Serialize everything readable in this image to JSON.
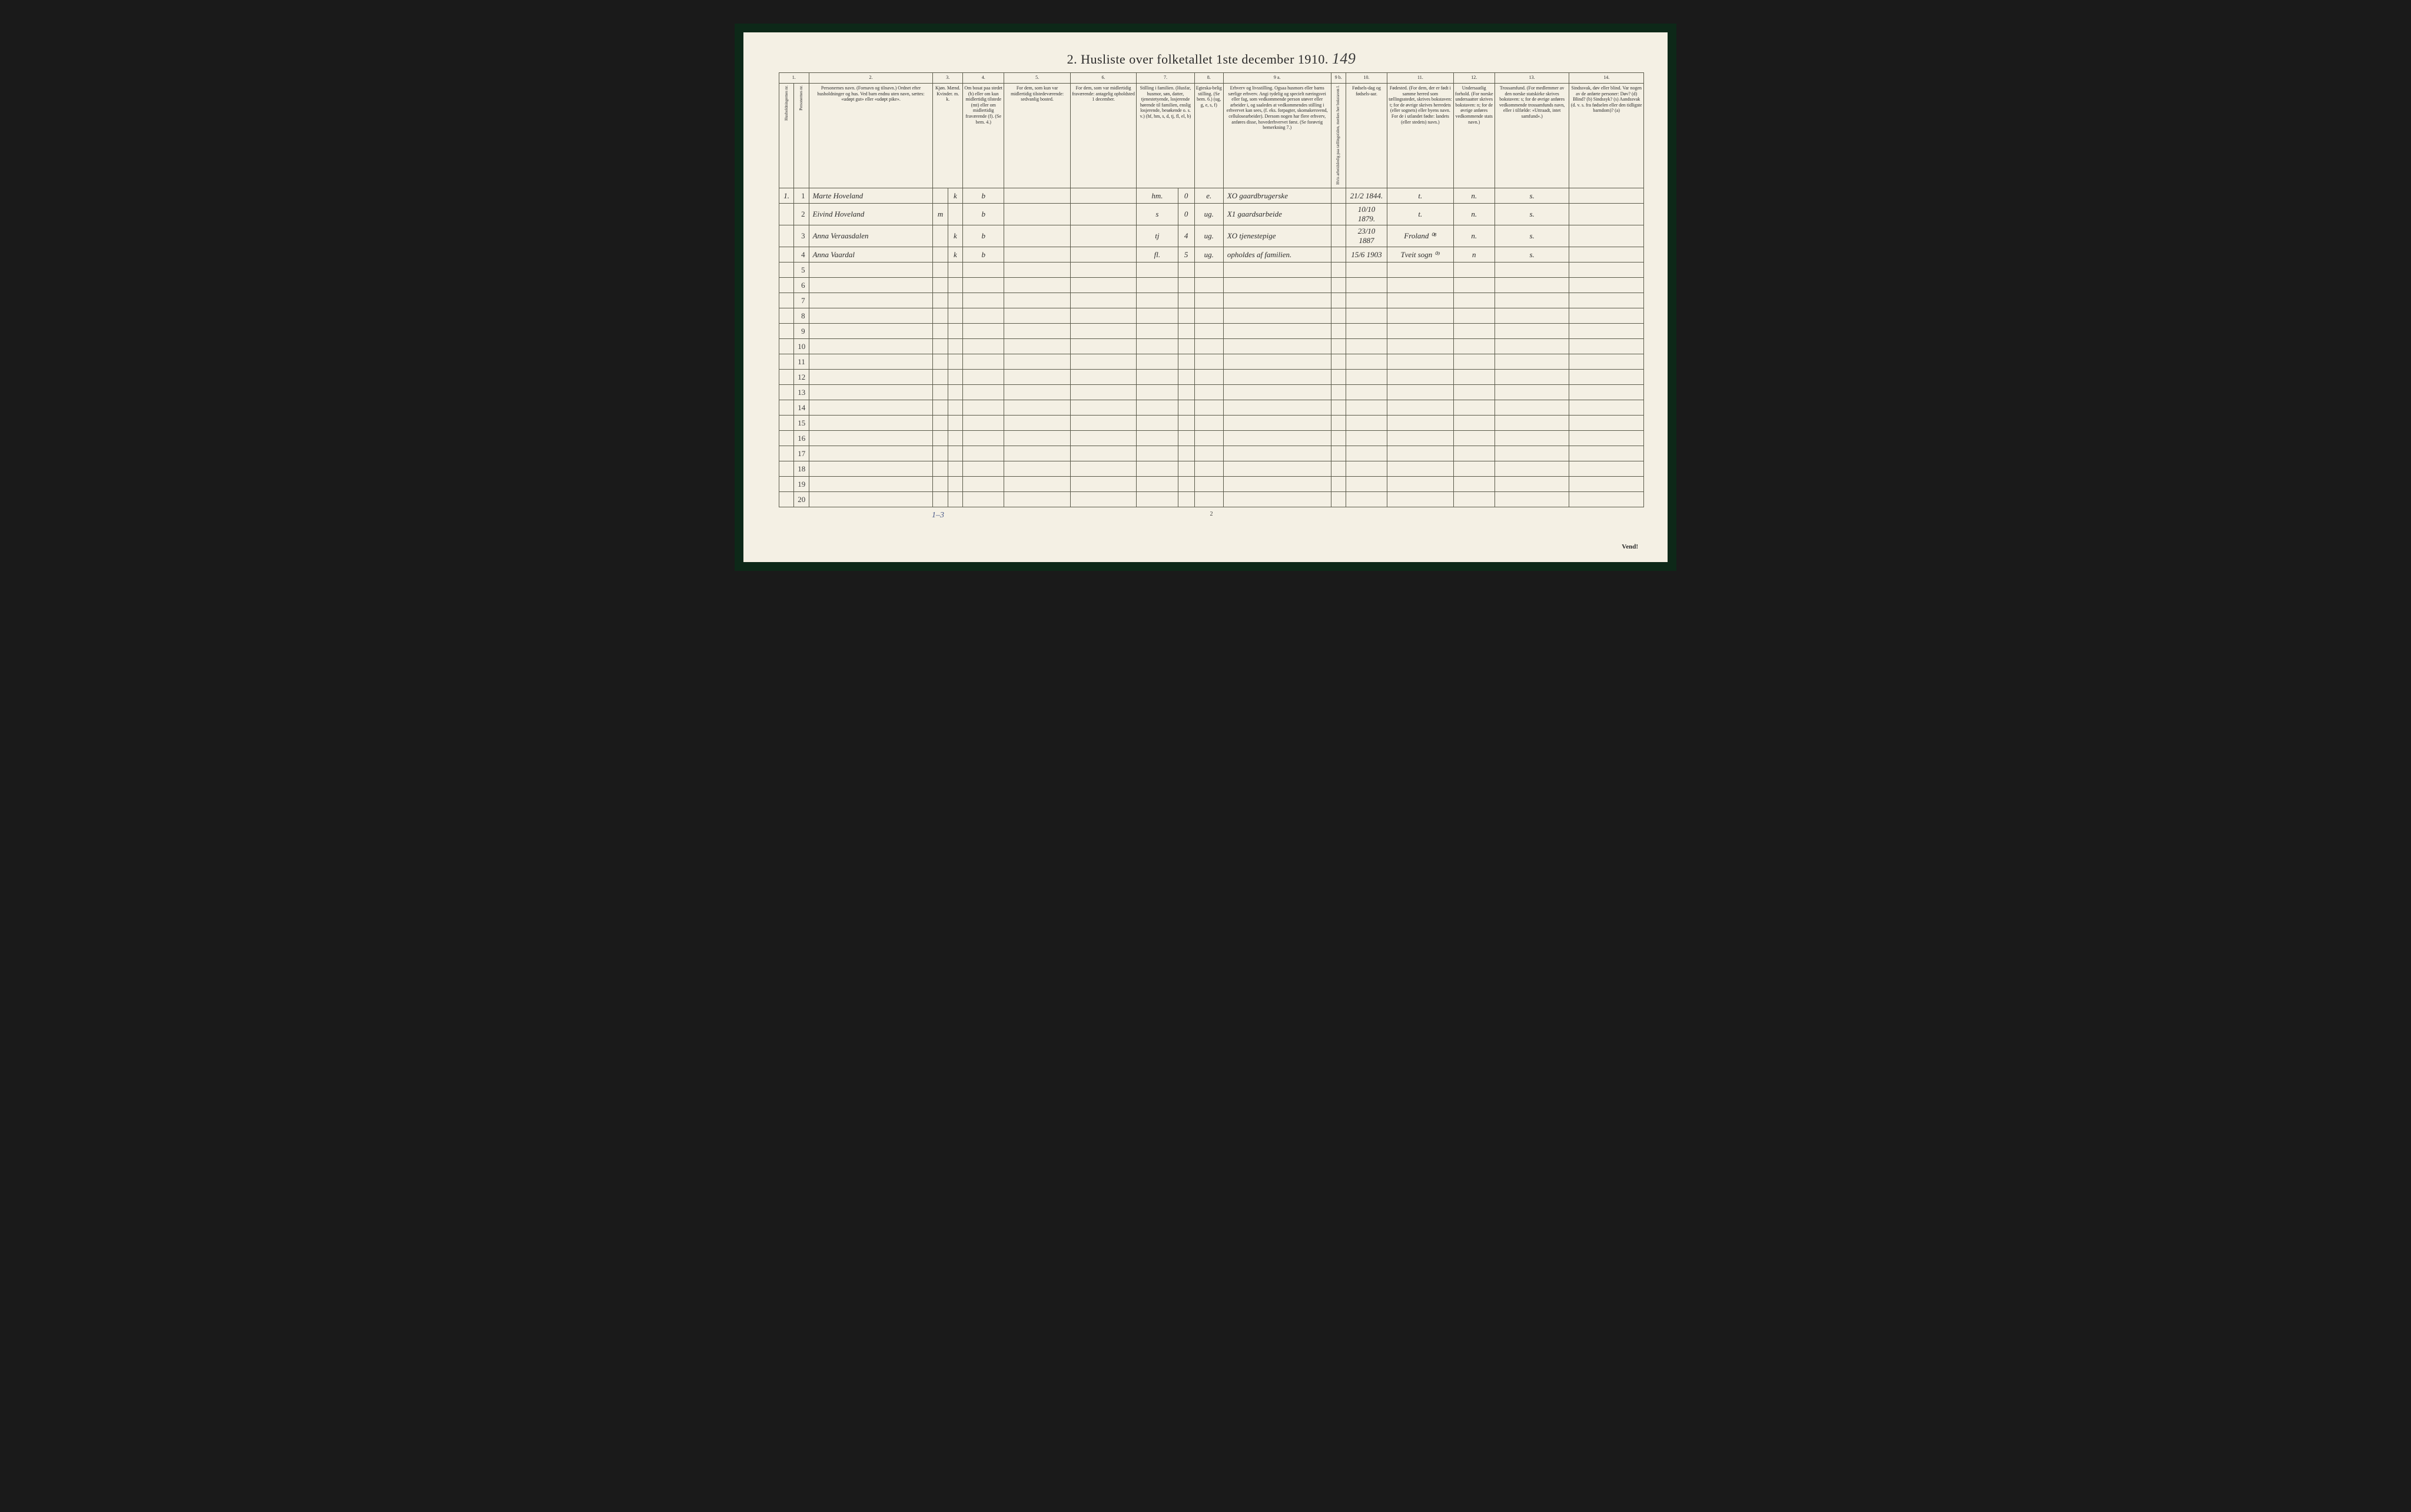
{
  "document": {
    "title_prefix": "2.",
    "title": "Husliste over folketallet 1ste december 1910.",
    "handwritten_page_number": "149",
    "footer_page_num": "2",
    "footer_handwritten": "1–3",
    "vend": "Vend!"
  },
  "table": {
    "column_numbers": [
      "1.",
      "2.",
      "3.",
      "4.",
      "5.",
      "6.",
      "7.",
      "8.",
      "9 a.",
      "9 b.",
      "10.",
      "11.",
      "12.",
      "13.",
      "14."
    ],
    "column_widths_pct": [
      2,
      2,
      16,
      2.2,
      2.2,
      5,
      8,
      8,
      9,
      5,
      13,
      2,
      5,
      8,
      6,
      10,
      10
    ],
    "headers": {
      "col1a": "Husholdningernes nr.",
      "col1b": "Personernes nr.",
      "col2": "Personernes navn.\n(Fornavn og tilnavn.)\nOrdnet efter husholdninger og hus.\nVed barn endnu uten navn, sættes: «udøpt gut» eller «udøpt pike».",
      "col3": "Kjøn.\nMænd.\nKvinder.\nm.  k.",
      "col4": "Om bosat paa stedet (b) eller om kun midlertidig tilstede (mt) eller om midlertidig fraværende (f).\n(Se bem. 4.)",
      "col5": "For dem, som kun var midlertidig tilstedeværende:\nsedvanlig bosted.",
      "col6": "For dem, som var midlertidig fraværende:\nantagelig opholdsted 1 december.",
      "col7": "Stilling i familien.\n(Husfar, husmor, søn, datter, tjenestetyende, losjerende hørende til familien, enslig losjerende, besøkende o. s. v.)\n(hf, hm, s, d, tj, fl, el, b)",
      "col8": "Egteska-belig stilling.\n(Se bem. 6.)\n(ug, g, e, s, f)",
      "col9a": "Erhverv og livsstilling.\nOgsaa husmors eller barns særlige erhverv.\nAngi tydelig og specielt næringsvei eller fag, som vedkommende person utøver eller arbeider i, og saaledes at vedkommendes stilling i erhvervet kan sees, (f. eks. forpagter, skomakersvend, cellulosearbeider). Dersom nogen har flere erhverv, anføres disse, hovederhvervet først.\n(Se forøvrig bemerkning 7.)",
      "col9b": "Hvis arbeidsledig paa tællingstiden, merkes her bokstaven l.",
      "col10": "Fødsels-dag og fødsels-aar.",
      "col11": "Fødested.\n(For dem, der er født i samme herred som tællingsstedet, skrives bokstaven: t; for de øvrige skrives herredets (eller sognets) eller byens navn.\nFor de i utlandet fødte: landets (eller stedets) navn.)",
      "col12": "Undersaatlig forhold.\n(For norske undersaatter skrives bokstaven: n; for de øvrige anføres vedkommende stats navn.)",
      "col13": "Trossamfund.\n(For medlemmer av den norske statskirke skrives bokstaven: s; for de øvrige anføres vedkommende trossamfunds navn, eller i tilfælde: «Uttraadt, intet samfund».)",
      "col14": "Sindssvak, døv eller blind.\nVar nogen av de anførte personer:\nDøv? (d)\nBlind? (b)\nSindssyk? (s)\nAandssvak (d. v. s. fra fødselen eller den tidligste barndom)? (a)"
    },
    "rows": [
      {
        "hh": "1.",
        "pn": "1",
        "name": "Marte Hoveland",
        "sex_m": "",
        "sex_k": "k",
        "bosat": "b",
        "c5": "",
        "c6": "",
        "stilling": "hm.",
        "c7b": "0",
        "egt": "e.",
        "erhverv_prefix": "XO",
        "erhverv": "gaardbrugerske",
        "c9b": "",
        "dob": "21/2 1844.",
        "fodested": "t.",
        "und": "n.",
        "tros": "s.",
        "c14": ""
      },
      {
        "hh": "",
        "pn": "2",
        "name": "Eivind Hoveland",
        "sex_m": "m",
        "sex_k": "",
        "bosat": "b",
        "c5": "",
        "c6": "",
        "stilling": "s",
        "c7b": "0",
        "egt": "ug.",
        "erhverv_prefix": "X1",
        "erhverv": "gaardsarbeide",
        "c9b": "",
        "dob": "10/10 1879.",
        "fodested": "t.",
        "und": "n.",
        "tros": "s.",
        "c14": ""
      },
      {
        "hh": "",
        "pn": "3",
        "name": "Anna Veraasdalen",
        "sex_m": "",
        "sex_k": "k",
        "bosat": "b",
        "c5": "",
        "c6": "",
        "stilling": "tj",
        "c7b": "4",
        "egt": "ug.",
        "erhverv_prefix": "XO",
        "erhverv": "tjenestepige",
        "c9b": "",
        "dob": "23/10 1887",
        "fodested": "Froland ⁰⁸",
        "und": "n.",
        "tros": "s.",
        "c14": ""
      },
      {
        "hh": "",
        "pn": "4",
        "name": "Anna Vaardal",
        "sex_m": "",
        "sex_k": "k",
        "bosat": "b",
        "c5": "",
        "c6": "",
        "stilling": "fl.",
        "c7b": "5",
        "egt": "ug.",
        "erhverv_prefix": "",
        "erhverv": "opholdes af familien.",
        "c9b": "",
        "dob": "15/6 1903",
        "fodested": "Tveit sogn ⁰⁹",
        "und": "n",
        "tros": "s.",
        "c14": ""
      }
    ],
    "empty_row_count": 16,
    "row_number_start": 1,
    "row_number_end": 20
  },
  "colors": {
    "page_bg": "#f4f0e4",
    "border": "#5a5a4a",
    "text": "#2a2a2a",
    "outer_bg": "#1a1a1a",
    "frame_bg": "#0d2818",
    "pencil": "#4a5a8a"
  },
  "typography": {
    "title_fontsize_pt": 16,
    "header_fontsize_pt": 6,
    "body_fontsize_pt": 10,
    "handwriting_family": "cursive"
  }
}
